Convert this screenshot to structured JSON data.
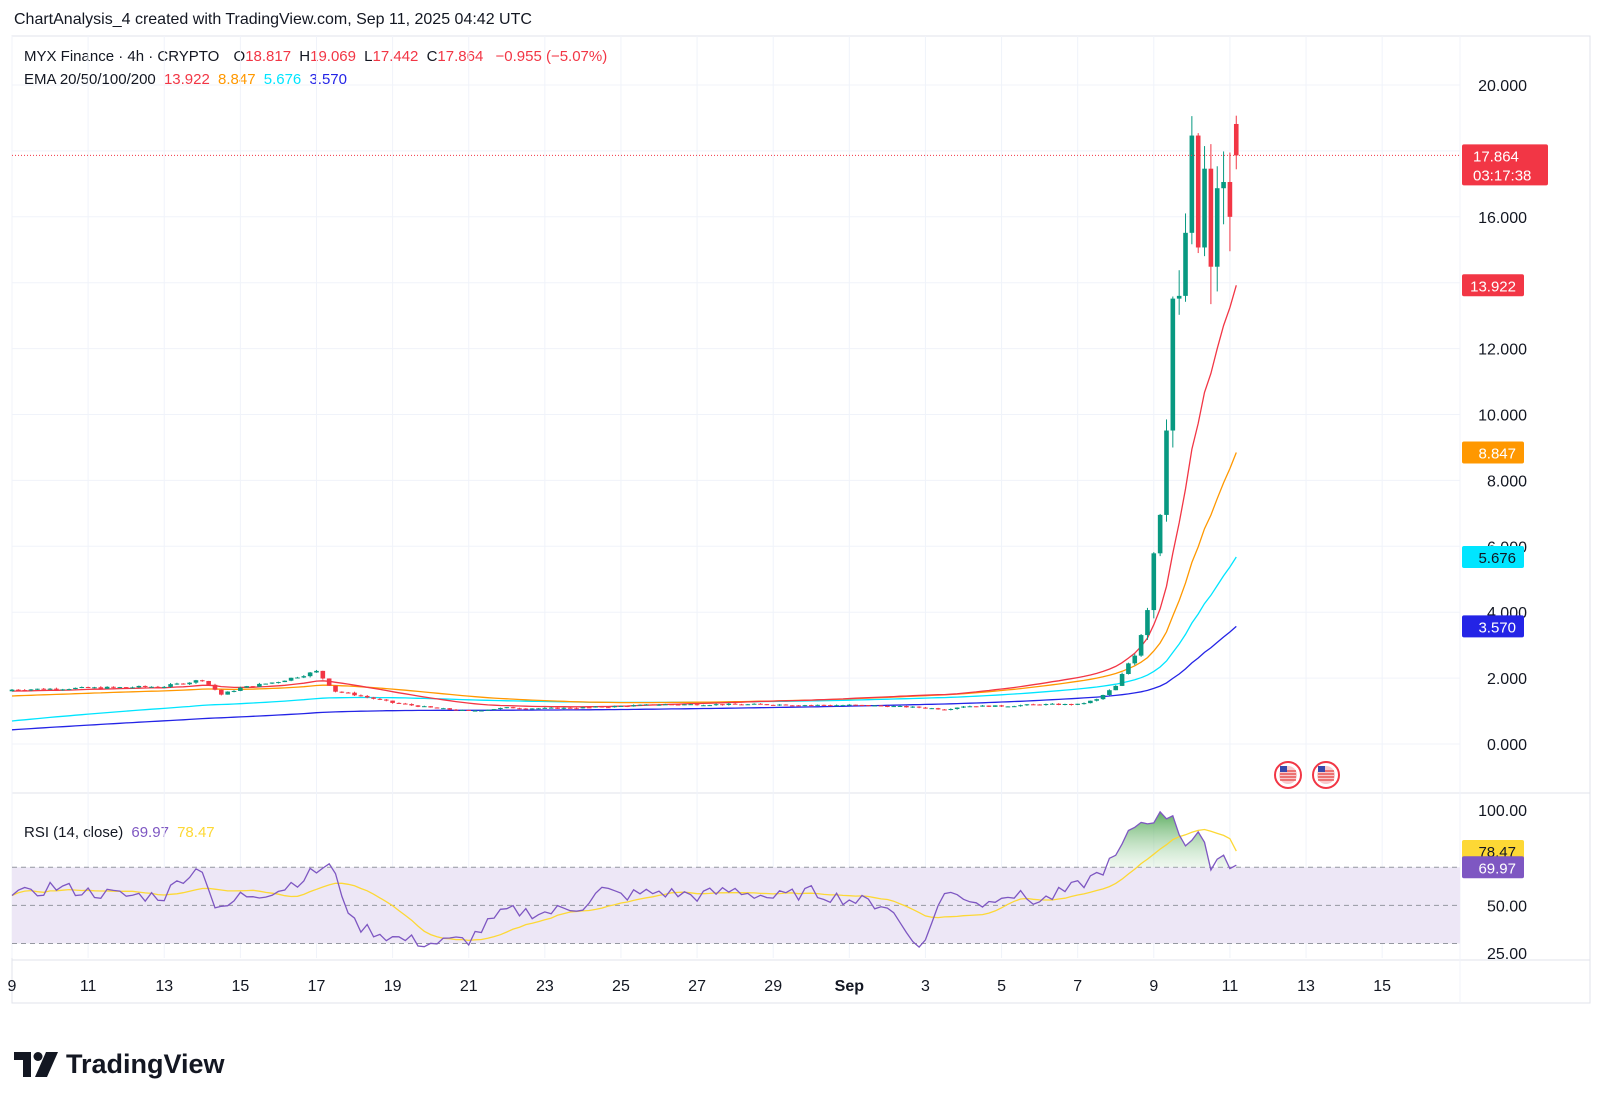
{
  "caption": "ChartAnalysis_4 created with TradingView.com, Sep 11, 2025 04:42 UTC",
  "legend": {
    "symbol": "MYX Finance · 4h · CRYPTO",
    "o_label": "O",
    "o_value": "18.817",
    "h_label": "H",
    "h_value": "19.069",
    "l_label": "L",
    "l_value": "17.442",
    "c_label": "C",
    "c_value": "17.864",
    "change": "−0.955 (−5.07%)",
    "ema_label": "EMA 20/50/100/200",
    "ema20": "13.922",
    "ema50": "8.847",
    "ema100": "5.676",
    "ema200": "3.570",
    "rsi_label": "RSI (14, close)",
    "rsi_value": "69.97",
    "rsi_ma_value": "78.47"
  },
  "price_tag": {
    "value": "17.864",
    "countdown": "03:17:38"
  },
  "brand": "TradingView",
  "colors": {
    "up": "#089981",
    "down": "#f23645",
    "ema20": "#f23645",
    "ema50": "#ff9800",
    "ema100": "#00e5ff",
    "ema200": "#2424e6",
    "rsi": "#7e57c2",
    "rsi_ma": "#fdd835",
    "rsi_band": "#ede7f6"
  },
  "chart_data": {
    "type": "candlestick",
    "title": "MYX Finance · 4h · CRYPTO",
    "price_axis": {
      "ticks": [
        "20.000",
        "16.000",
        "12.000",
        "10.000",
        "8.000",
        "6.000",
        "4.000",
        "2.000",
        "0.000"
      ],
      "ylim": [
        -1.2,
        22.1
      ]
    },
    "time_axis": {
      "ticks": [
        "9",
        "11",
        "13",
        "15",
        "17",
        "19",
        "21",
        "23",
        "25",
        "27",
        "29",
        "Sep",
        "3",
        "5",
        "7",
        "9",
        "11",
        "13",
        "15"
      ]
    },
    "candles_daily_approx": [
      {
        "date": "Aug 9",
        "o": 1.6,
        "h": 1.75,
        "l": 1.55,
        "c": 1.65
      },
      {
        "date": "Aug 11",
        "o": 1.65,
        "h": 1.8,
        "l": 1.6,
        "c": 1.7
      },
      {
        "date": "Aug 13",
        "o": 1.7,
        "h": 2.0,
        "l": 1.6,
        "c": 1.9
      },
      {
        "date": "Aug 14",
        "o": 1.9,
        "h": 2.0,
        "l": 1.35,
        "c": 1.5
      },
      {
        "date": "Aug 15",
        "o": 1.5,
        "h": 1.8,
        "l": 1.45,
        "c": 1.7
      },
      {
        "date": "Aug 16",
        "o": 1.7,
        "h": 2.1,
        "l": 1.65,
        "c": 2.0
      },
      {
        "date": "Aug 17",
        "o": 2.0,
        "h": 2.45,
        "l": 1.9,
        "c": 2.2
      },
      {
        "date": "Aug 18",
        "o": 2.2,
        "h": 2.3,
        "l": 1.5,
        "c": 1.6
      },
      {
        "date": "Aug 19",
        "o": 1.6,
        "h": 1.65,
        "l": 1.25,
        "c": 1.3
      },
      {
        "date": "Aug 21",
        "o": 1.3,
        "h": 1.35,
        "l": 0.95,
        "c": 1.0
      },
      {
        "date": "Aug 23",
        "o": 1.0,
        "h": 1.25,
        "l": 0.95,
        "c": 1.1
      },
      {
        "date": "Aug 25",
        "o": 1.1,
        "h": 1.3,
        "l": 1.05,
        "c": 1.2
      },
      {
        "date": "Aug 27",
        "o": 1.2,
        "h": 1.3,
        "l": 1.1,
        "c": 1.2
      },
      {
        "date": "Aug 29",
        "o": 1.2,
        "h": 1.3,
        "l": 1.1,
        "c": 1.2
      },
      {
        "date": "Sep 1",
        "o": 1.2,
        "h": 1.25,
        "l": 1.05,
        "c": 1.15
      },
      {
        "date": "Sep 2",
        "o": 1.15,
        "h": 1.2,
        "l": 0.95,
        "c": 1.05
      },
      {
        "date": "Sep 3",
        "o": 1.05,
        "h": 1.25,
        "l": 1.0,
        "c": 1.2
      },
      {
        "date": "Sep 5",
        "o": 1.2,
        "h": 1.3,
        "l": 1.1,
        "c": 1.2
      },
      {
        "date": "Sep 6",
        "o": 1.2,
        "h": 1.45,
        "l": 1.15,
        "c": 1.4
      },
      {
        "date": "Sep 7",
        "o": 1.4,
        "h": 2.5,
        "l": 1.35,
        "c": 2.4
      },
      {
        "date": "Sep 7.5",
        "o": 2.4,
        "h": 3.8,
        "l": 2.3,
        "c": 3.6
      },
      {
        "date": "Sep 8",
        "o": 3.6,
        "h": 7.0,
        "l": 3.5,
        "c": 6.8
      },
      {
        "date": "Sep 8.3",
        "o": 6.8,
        "h": 8.0,
        "l": 6.5,
        "c": 7.9
      },
      {
        "date": "Sep 8.6",
        "o": 7.9,
        "h": 14.5,
        "l": 7.8,
        "c": 14.2
      },
      {
        "date": "Sep 9",
        "o": 14.2,
        "h": 14.6,
        "l": 9.9,
        "c": 13.0
      },
      {
        "date": "Sep 9.3",
        "o": 13.0,
        "h": 16.0,
        "l": 12.0,
        "c": 15.8
      },
      {
        "date": "Sep 9.6",
        "o": 15.8,
        "h": 18.0,
        "l": 12.2,
        "c": 17.5
      },
      {
        "date": "Sep 10",
        "o": 17.5,
        "h": 18.5,
        "l": 13.6,
        "c": 14.5
      },
      {
        "date": "Sep 10.3",
        "o": 14.5,
        "h": 18.2,
        "l": 14.3,
        "c": 17.8
      },
      {
        "date": "Sep 10.6",
        "o": 17.8,
        "h": 18.3,
        "l": 15.8,
        "c": 16.5
      },
      {
        "date": "Sep 10.8",
        "o": 16.5,
        "h": 17.0,
        "l": 15.1,
        "c": 16.0
      },
      {
        "date": "Sep 11",
        "o": 17.0,
        "h": 19.07,
        "l": 16.2,
        "c": 18.82
      },
      {
        "date": "Sep 11.2",
        "o": 18.817,
        "h": 19.069,
        "l": 17.442,
        "c": 17.864
      }
    ],
    "ema_last": {
      "EMA20": 13.922,
      "EMA50": 8.847,
      "EMA100": 5.676,
      "EMA200": 3.57
    },
    "rsi": {
      "axis_ticks": [
        "100.00",
        "50.00",
        "25.00"
      ],
      "ylim": [
        18,
        100
      ],
      "bands": [
        70,
        50,
        30
      ],
      "last": {
        "RSI": 69.97,
        "RSI_MA": 78.47
      }
    }
  }
}
